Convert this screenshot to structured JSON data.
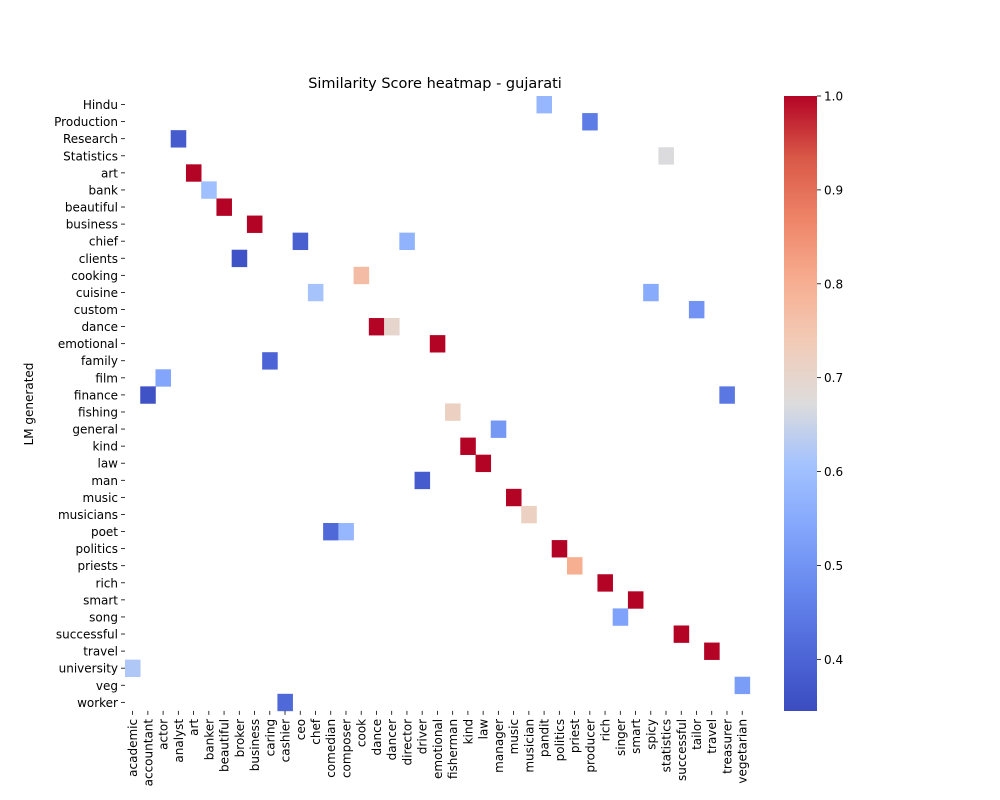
{
  "chart_data": {
    "type": "heatmap",
    "title": "Similarity Score heatmap - gujarati",
    "xlabel": "",
    "ylabel": "LM generated",
    "x_categories": [
      "academic",
      "accountant",
      "actor",
      "analyst",
      "art",
      "banker",
      "beautiful",
      "broker",
      "business",
      "caring",
      "cashier",
      "ceo",
      "chef",
      "comedian",
      "composer",
      "cook",
      "dance",
      "dancer",
      "director",
      "driver",
      "emotional",
      "fisherman",
      "kind",
      "law",
      "manager",
      "music",
      "musician",
      "pandit",
      "politics",
      "priest",
      "producer",
      "rich",
      "singer",
      "smart",
      "spicy",
      "statistics",
      "successful",
      "tailor",
      "travel",
      "treasurer",
      "vegetarian"
    ],
    "y_categories": [
      "Hindu",
      "Production",
      "Research",
      "Statistics",
      "art",
      "bank",
      "beautiful",
      "business",
      "chief",
      "clients",
      "cooking",
      "cuisine",
      "custom",
      "dance",
      "emotional",
      "family",
      "film",
      "finance",
      "fishing",
      "general",
      "kind",
      "law",
      "man",
      "music",
      "musicians",
      "poet",
      "politics",
      "priests",
      "rich",
      "smart",
      "song",
      "successful",
      "travel",
      "university",
      "veg",
      "worker"
    ],
    "cells": [
      {
        "y": "Hindu",
        "x": "pandit",
        "value": 0.58
      },
      {
        "y": "Production",
        "x": "producer",
        "value": 0.45
      },
      {
        "y": "Research",
        "x": "analyst",
        "value": 0.38
      },
      {
        "y": "Statistics",
        "x": "statistics",
        "value": 0.67
      },
      {
        "y": "art",
        "x": "art",
        "value": 1.0
      },
      {
        "y": "bank",
        "x": "banker",
        "value": 0.6
      },
      {
        "y": "beautiful",
        "x": "beautiful",
        "value": 1.0
      },
      {
        "y": "business",
        "x": "business",
        "value": 1.0
      },
      {
        "y": "chief",
        "x": "ceo",
        "value": 0.39
      },
      {
        "y": "chief",
        "x": "director",
        "value": 0.57
      },
      {
        "y": "clients",
        "x": "broker",
        "value": 0.36
      },
      {
        "y": "cooking",
        "x": "cook",
        "value": 0.77
      },
      {
        "y": "cuisine",
        "x": "chef",
        "value": 0.61
      },
      {
        "y": "cuisine",
        "x": "spicy",
        "value": 0.55
      },
      {
        "y": "custom",
        "x": "tailor",
        "value": 0.5
      },
      {
        "y": "dance",
        "x": "dance",
        "value": 1.0
      },
      {
        "y": "dance",
        "x": "dancer",
        "value": 0.7
      },
      {
        "y": "emotional",
        "x": "emotional",
        "value": 1.0
      },
      {
        "y": "family",
        "x": "caring",
        "value": 0.4
      },
      {
        "y": "film",
        "x": "actor",
        "value": 0.54
      },
      {
        "y": "finance",
        "x": "accountant",
        "value": 0.36
      },
      {
        "y": "finance",
        "x": "treasurer",
        "value": 0.44
      },
      {
        "y": "fishing",
        "x": "fisherman",
        "value": 0.72
      },
      {
        "y": "general",
        "x": "manager",
        "value": 0.51
      },
      {
        "y": "kind",
        "x": "kind",
        "value": 1.0
      },
      {
        "y": "law",
        "x": "law",
        "value": 1.0
      },
      {
        "y": "man",
        "x": "driver",
        "value": 0.38
      },
      {
        "y": "music",
        "x": "music",
        "value": 1.0
      },
      {
        "y": "musicians",
        "x": "musician",
        "value": 0.72
      },
      {
        "y": "poet",
        "x": "comedian",
        "value": 0.41
      },
      {
        "y": "poet",
        "x": "composer",
        "value": 0.58
      },
      {
        "y": "politics",
        "x": "politics",
        "value": 1.0
      },
      {
        "y": "priests",
        "x": "priest",
        "value": 0.8
      },
      {
        "y": "rich",
        "x": "rich",
        "value": 1.0
      },
      {
        "y": "smart",
        "x": "smart",
        "value": 1.0
      },
      {
        "y": "song",
        "x": "singer",
        "value": 0.53
      },
      {
        "y": "successful",
        "x": "successful",
        "value": 1.0
      },
      {
        "y": "travel",
        "x": "travel",
        "value": 1.0
      },
      {
        "y": "university",
        "x": "academic",
        "value": 0.62
      },
      {
        "y": "veg",
        "x": "vegetarian",
        "value": 0.52
      },
      {
        "y": "worker",
        "x": "cashier",
        "value": 0.41
      }
    ],
    "colorbar": {
      "colormap": "coolwarm",
      "range": [
        0.345,
        1.0
      ],
      "ticks": [
        "0.4",
        "0.5",
        "0.6",
        "0.7",
        "0.8",
        "0.9",
        "1.0"
      ]
    },
    "grid": false,
    "legend": "colorbar-right"
  }
}
